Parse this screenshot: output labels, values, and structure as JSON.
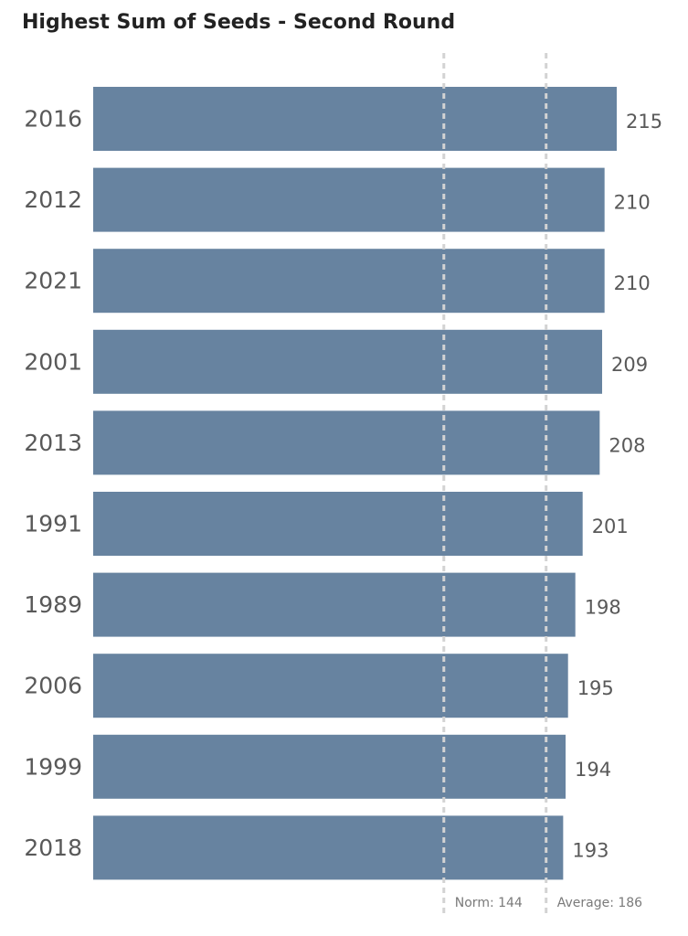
{
  "chart_data": {
    "type": "bar",
    "orientation": "horizontal",
    "title": "Highest Sum of Seeds - Second Round",
    "categories": [
      "2016",
      "2012",
      "2021",
      "2001",
      "2013",
      "1991",
      "1989",
      "2006",
      "1999",
      "2018"
    ],
    "values": [
      215,
      210,
      210,
      209,
      208,
      201,
      198,
      195,
      194,
      193
    ],
    "xlim": [
      0,
      215
    ],
    "grid": false,
    "bar_color": "#6783A0",
    "reference_lines": [
      {
        "label": "Norm: 144",
        "value": 144
      },
      {
        "label": "Average: 186",
        "value": 186
      }
    ]
  }
}
